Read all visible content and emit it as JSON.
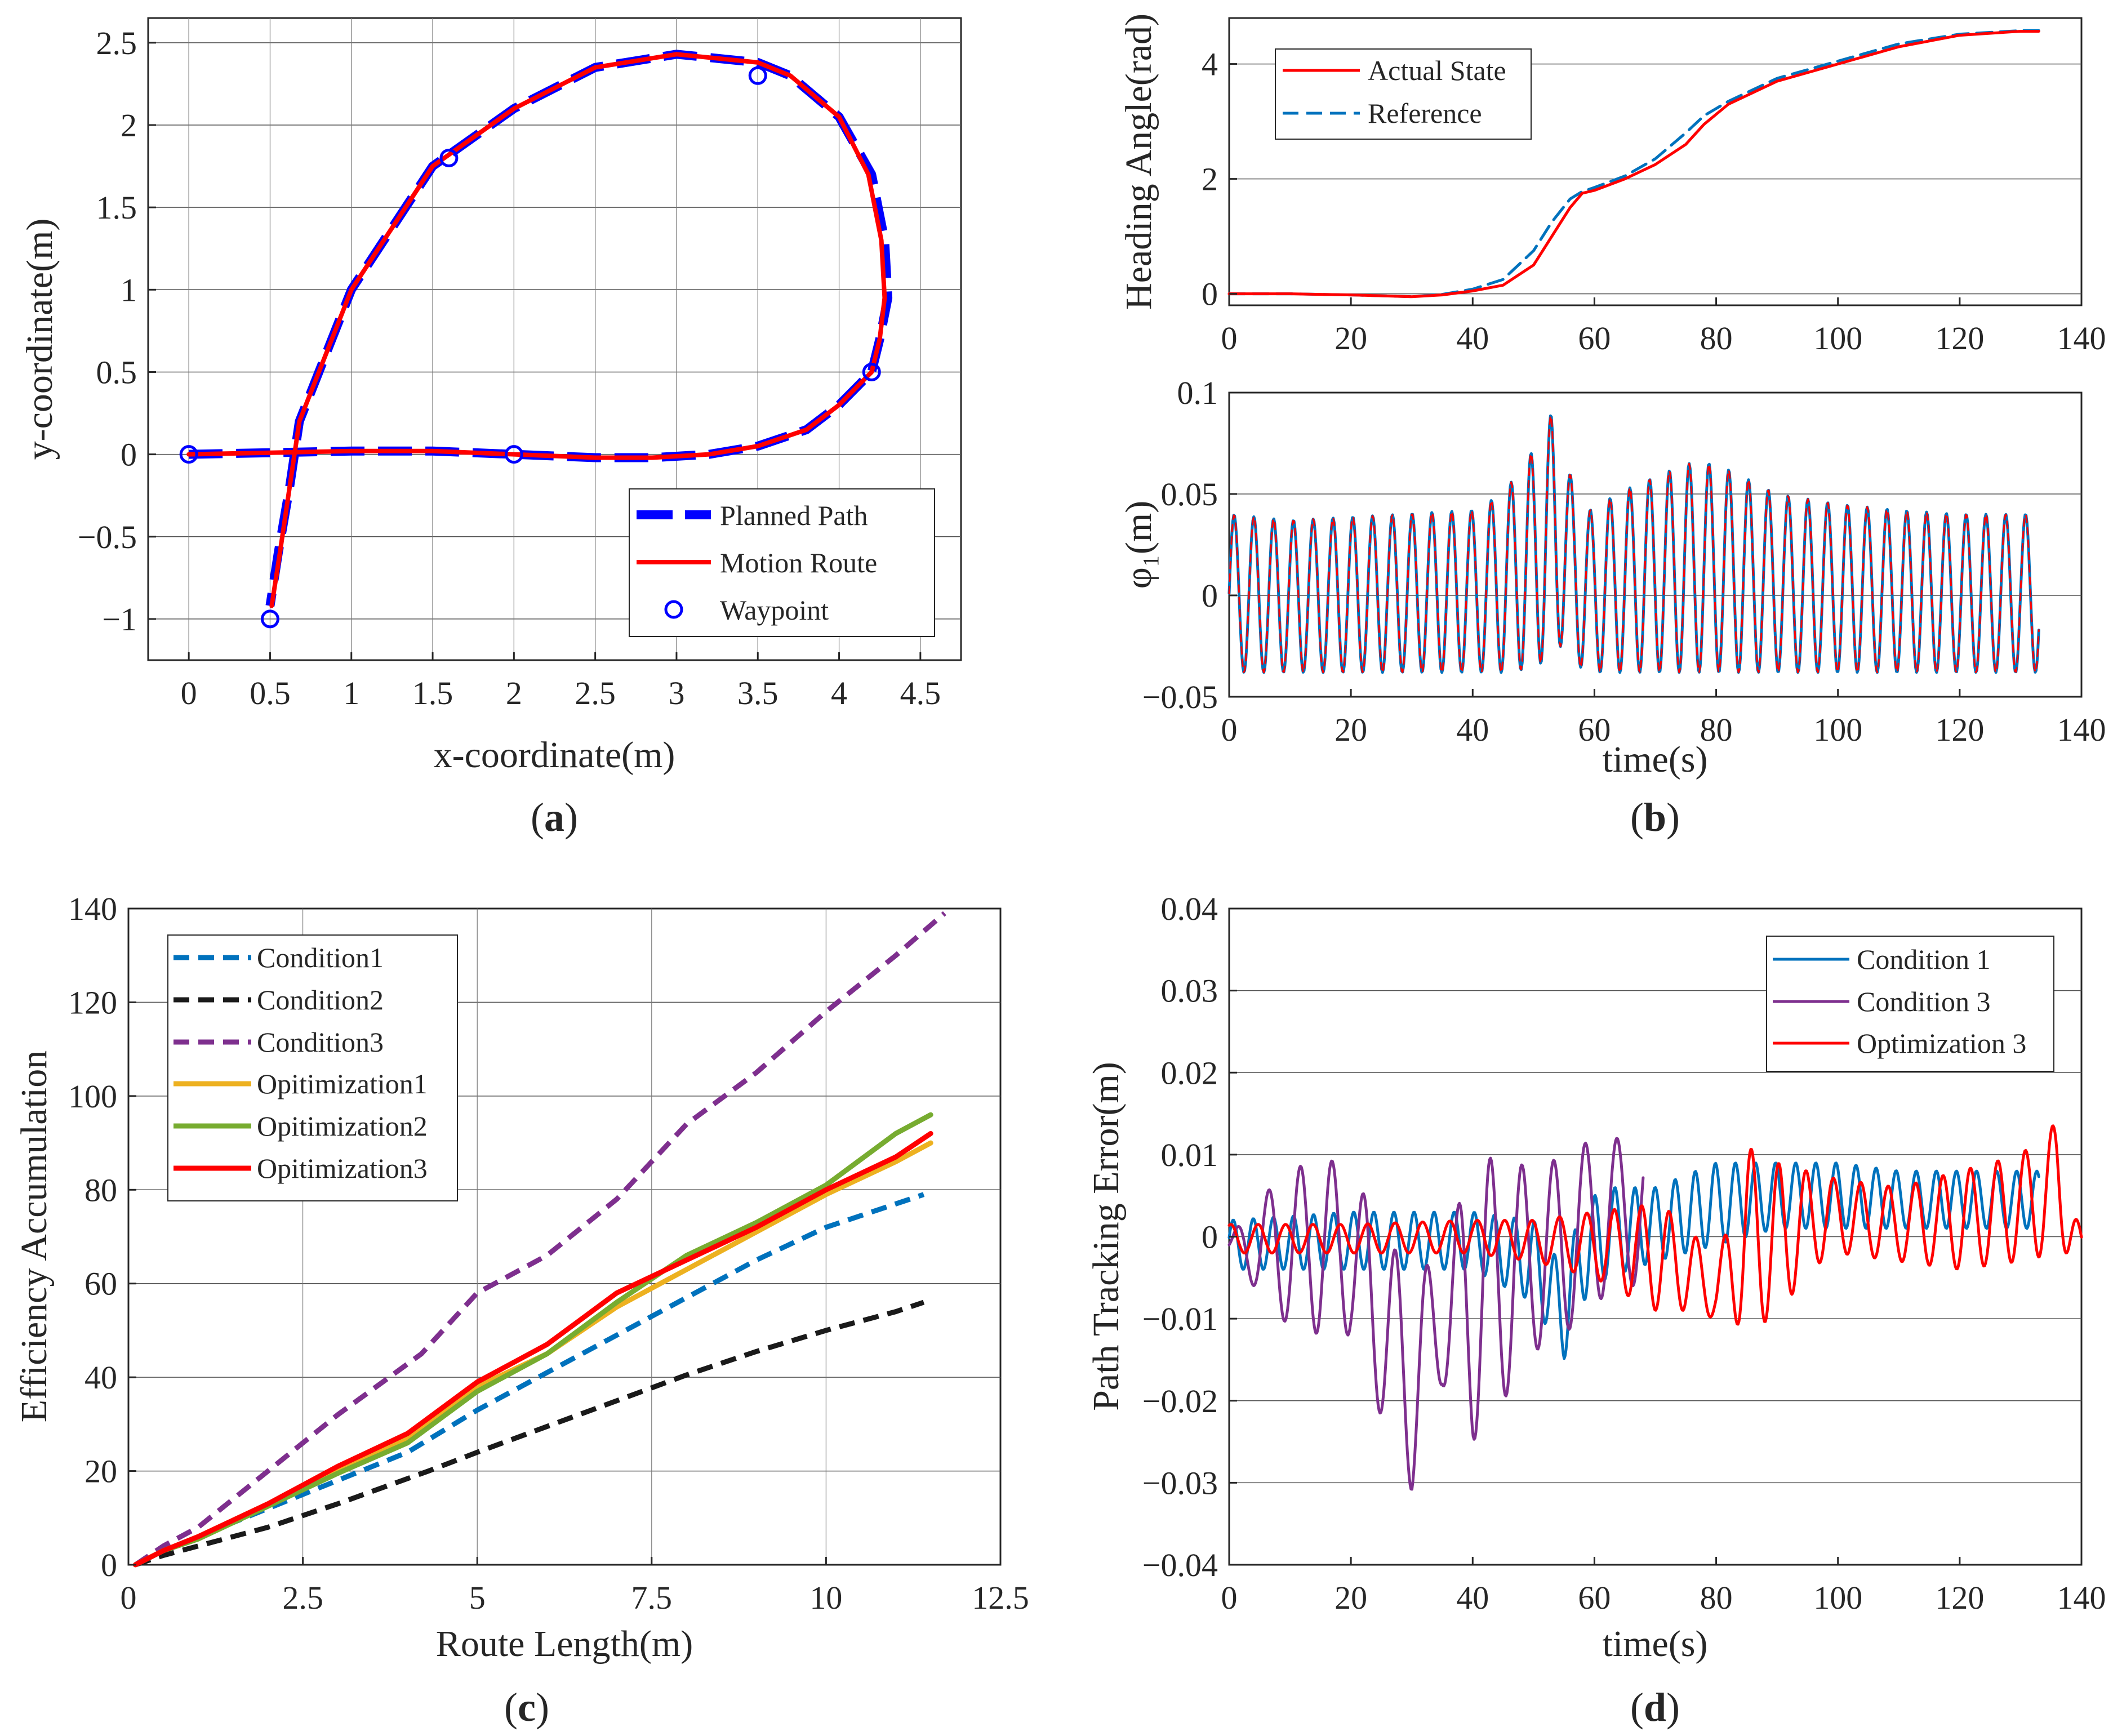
{
  "panels": [
    {
      "id": "a",
      "label": "a",
      "chart_data": {
        "type": "line",
        "xlabel": "x-coordinate(m)",
        "ylabel": "y-coordinate(m)",
        "xlim": [
          -0.25,
          4.75
        ],
        "ylim": [
          -1.25,
          2.65
        ],
        "xticks": [
          0,
          0.5,
          1,
          1.5,
          2,
          2.5,
          3,
          3.5,
          4,
          4.5
        ],
        "xtick_labels": [
          "0",
          "0.5",
          "1",
          "1.5",
          "2",
          "2.5",
          "3",
          "3.5",
          "4",
          "4.5"
        ],
        "yticks": [
          -1,
          -0.5,
          0,
          0.5,
          1,
          1.5,
          2,
          2.5
        ],
        "ytick_labels": [
          "−1",
          "−0.5",
          "0",
          "0.5",
          "1",
          "1.5",
          "2",
          "2.5"
        ],
        "legend_position": "bottom-right",
        "series": [
          {
            "name": "Planned Path",
            "style": "dash",
            "color": "#0000ff",
            "x": [
              0,
              0.5,
              1,
              1.5,
              2,
              2.5,
              2.85,
              3.2,
              3.5,
              3.8,
              4.0,
              4.1,
              4.2,
              4.25,
              4.3,
              4.28,
              4.2,
              4.0,
              3.7,
              3.5,
              3.0,
              2.5,
              2.0,
              1.5,
              1.0,
              0.68,
              0.62,
              0.55,
              0.5
            ],
            "y": [
              0,
              0.01,
              0.02,
              0.02,
              0.0,
              -0.02,
              -0.02,
              0.0,
              0.05,
              0.15,
              0.3,
              0.4,
              0.5,
              0.7,
              0.95,
              1.3,
              1.7,
              2.05,
              2.3,
              2.38,
              2.43,
              2.35,
              2.1,
              1.75,
              1.0,
              0.2,
              -0.2,
              -0.6,
              -0.92
            ]
          },
          {
            "name": "Motion Route",
            "style": "solid",
            "color": "#ff0000",
            "x": [
              0,
              0.5,
              1,
              1.5,
              2,
              2.5,
              2.85,
              3.2,
              3.5,
              3.8,
              4.0,
              4.1,
              4.2,
              4.25,
              4.28,
              4.26,
              4.18,
              4.0,
              3.7,
              3.5,
              3.0,
              2.5,
              2.0,
              1.5,
              1.0,
              0.68,
              0.62,
              0.56,
              0.51
            ],
            "y": [
              0,
              0.01,
              0.02,
              0.02,
              0.0,
              -0.02,
              -0.02,
              0.0,
              0.05,
              0.15,
              0.3,
              0.4,
              0.5,
              0.7,
              0.95,
              1.3,
              1.7,
              2.05,
              2.3,
              2.38,
              2.43,
              2.35,
              2.1,
              1.75,
              1.0,
              0.2,
              -0.2,
              -0.6,
              -0.92
            ]
          },
          {
            "name": "Waypoint",
            "style": "marker",
            "color": "#0000ff",
            "x": [
              0,
              2,
              4.2,
              3.5,
              1.6,
              0.5
            ],
            "y": [
              0,
              0,
              0.5,
              2.3,
              1.8,
              -1
            ]
          }
        ]
      }
    },
    {
      "id": "b",
      "label": "b",
      "chart_data": [
        {
          "type": "line",
          "xlabel": "",
          "ylabel": "Heading Angle(rad)",
          "xlim": [
            0,
            140
          ],
          "ylim": [
            -0.2,
            4.8
          ],
          "xticks": [
            0,
            20,
            40,
            60,
            80,
            100,
            120,
            140
          ],
          "xtick_labels": [
            "0",
            "20",
            "40",
            "60",
            "80",
            "100",
            "120",
            "140"
          ],
          "yticks": [
            0,
            2,
            4
          ],
          "ytick_labels": [
            "0",
            "2",
            "4"
          ],
          "legend_position": "top-left",
          "series": [
            {
              "name": "Actual State",
              "style": "solid",
              "color": "#ff0000",
              "x": [
                0,
                10,
                20,
                30,
                35,
                40,
                45,
                50,
                53,
                56,
                58,
                60,
                65,
                70,
                75,
                78,
                82,
                90,
                100,
                110,
                120,
                130,
                133
              ],
              "y": [
                0,
                0.0,
                -0.02,
                -0.05,
                -0.02,
                0.05,
                0.15,
                0.5,
                1.0,
                1.5,
                1.75,
                1.8,
                2.0,
                2.25,
                2.6,
                2.95,
                3.3,
                3.7,
                4.0,
                4.3,
                4.5,
                4.57,
                4.57
              ]
            },
            {
              "name": "Reference",
              "style": "dash",
              "color": "#0072bd",
              "x": [
                0,
                10,
                20,
                30,
                35,
                40,
                45,
                50,
                53,
                56,
                58,
                60,
                65,
                70,
                75,
                78,
                82,
                90,
                100,
                110,
                120,
                130,
                133
              ],
              "y": [
                0,
                0.0,
                -0.02,
                -0.05,
                -0.01,
                0.08,
                0.25,
                0.75,
                1.25,
                1.65,
                1.78,
                1.85,
                2.05,
                2.35,
                2.8,
                3.1,
                3.35,
                3.75,
                4.05,
                4.35,
                4.52,
                4.58,
                4.58
              ]
            }
          ]
        },
        {
          "type": "line",
          "xlabel": "time(s)",
          "ylabel": "φ₁(m)",
          "xlim": [
            0,
            140
          ],
          "ylim": [
            -0.05,
            0.1
          ],
          "xticks": [
            0,
            20,
            40,
            60,
            80,
            100,
            120,
            140
          ],
          "xtick_labels": [
            "0",
            "20",
            "40",
            "60",
            "80",
            "100",
            "120",
            "140"
          ],
          "yticks": [
            -0.05,
            0,
            0.05,
            0.1
          ],
          "ytick_labels": [
            "−0.05",
            "0",
            "0.05",
            "0.1"
          ],
          "series": [
            {
              "name": "phi1 actual",
              "style": "solid",
              "color": "#0072bd",
              "period": 3.25,
              "t_end": 133,
              "envelope_t": [
                0,
                10,
                40,
                45,
                50,
                53,
                56,
                58,
                65,
                75,
                80,
                90,
                100,
                110,
                120,
                133
              ],
              "upper": [
                0.04,
                0.037,
                0.042,
                0.05,
                0.072,
                0.09,
                0.06,
                0.04,
                0.052,
                0.065,
                0.065,
                0.05,
                0.045,
                0.042,
                0.04,
                0.04
              ],
              "lower": [
                -0.038,
                -0.038,
                -0.038,
                -0.038,
                -0.036,
                -0.03,
                -0.02,
                -0.038,
                -0.038,
                -0.038,
                -0.038,
                -0.038,
                -0.038,
                -0.038,
                -0.038,
                -0.038
              ]
            },
            {
              "name": "phi1 reference",
              "style": "dash",
              "color": "#ff0000",
              "period": 3.25,
              "t_end": 133
            }
          ]
        }
      ]
    },
    {
      "id": "c",
      "label": "c",
      "chart_data": {
        "type": "line",
        "xlabel": "Route Length(m)",
        "ylabel": "Efficiency Accumulation",
        "xlim": [
          0,
          12.5
        ],
        "ylim": [
          0,
          140
        ],
        "xticks": [
          0,
          2.5,
          5,
          7.5,
          10,
          12.5
        ],
        "xtick_labels": [
          "0",
          "2.5",
          "5",
          "7.5",
          "10",
          "12.5"
        ],
        "yticks": [
          0,
          20,
          40,
          60,
          80,
          100,
          120,
          140
        ],
        "ytick_labels": [
          "0",
          "20",
          "40",
          "60",
          "80",
          "100",
          "120",
          "140"
        ],
        "legend_position": "top-left",
        "series": [
          {
            "name": "Condition1",
            "style": "dash",
            "color": "#0072bd",
            "x": [
              0.1,
              0.5,
              1,
              2,
              3,
              4,
              5,
              6,
              7,
              8,
              9,
              10,
              11,
              11.4
            ],
            "y": [
              0,
              3,
              6,
              12,
              18,
              24,
              33,
              41,
              49,
              57,
              65,
              72,
              77,
              79
            ]
          },
          {
            "name": "Condition2",
            "style": "dash",
            "color": "#1a1a1a",
            "x": [
              0.1,
              0.5,
              1,
              2,
              3,
              4.3,
              5,
              6,
              7,
              8,
              9,
              10,
              11,
              11.4
            ],
            "y": [
              0,
              2,
              4,
              8,
              13,
              20,
              24,
              29.5,
              35,
              40.5,
              45.5,
              50,
              54,
              56
            ]
          },
          {
            "name": "Condition3",
            "style": "dash",
            "color": "#7e2f8e",
            "x": [
              0.1,
              0.5,
              1,
              2,
              3,
              4.2,
              5,
              6,
              7,
              8,
              9,
              10,
              11,
              11.7
            ],
            "y": [
              0,
              4,
              8,
              20,
              32,
              45,
              58,
              66,
              78,
              94,
              105,
              118,
              130,
              139
            ]
          },
          {
            "name": "Opitimization1",
            "style": "solid",
            "color": "#edb120",
            "x": [
              0.1,
              0.5,
              1,
              2,
              3,
              4,
              5,
              6,
              7,
              8,
              9,
              10,
              11,
              11.5
            ],
            "y": [
              0,
              3,
              6,
              13,
              20,
              27,
              38,
              45,
              55,
              63,
              71,
              79,
              86,
              90
            ]
          },
          {
            "name": "Opitimization2",
            "style": "solid",
            "color": "#77ac30",
            "x": [
              0.1,
              0.5,
              1,
              2,
              3,
              4,
              5,
              6,
              7,
              8,
              9,
              10,
              11,
              11.5
            ],
            "y": [
              0,
              3,
              5.5,
              12.5,
              19.5,
              26,
              37,
              45,
              56,
              66,
              73,
              81,
              92,
              96
            ]
          },
          {
            "name": "Opitimization3",
            "style": "solid",
            "color": "#ff0000",
            "x": [
              0.1,
              0.5,
              1,
              2,
              3,
              4,
              5,
              6,
              7,
              8,
              9,
              10,
              11,
              11.5
            ],
            "y": [
              0,
              3,
              6,
              13,
              21,
              28,
              39,
              47,
              58,
              65,
              72,
              80,
              87,
              92
            ]
          }
        ]
      }
    },
    {
      "id": "d",
      "label": "d",
      "chart_data": {
        "type": "line",
        "xlabel": "time(s)",
        "ylabel": "Path Tracking Error(m)",
        "xlim": [
          0,
          140
        ],
        "ylim": [
          -0.04,
          0.04
        ],
        "xticks": [
          0,
          20,
          40,
          60,
          80,
          100,
          120,
          140
        ],
        "xtick_labels": [
          "0",
          "20",
          "40",
          "60",
          "80",
          "100",
          "120",
          "140"
        ],
        "yticks": [
          -0.04,
          -0.03,
          -0.02,
          -0.01,
          0,
          0.01,
          0.02,
          0.03,
          0.04
        ],
        "ytick_labels": [
          "−0.04",
          "−0.03",
          "−0.02",
          "−0.01",
          "0",
          "0.01",
          "0.02",
          "0.03",
          "0.04"
        ],
        "legend_position": "top-right",
        "series": [
          {
            "name": "Condition 1",
            "style": "solid",
            "color": "#0072bd",
            "period": 3.3,
            "t_end": 133,
            "envelope_t": [
              0,
              20,
              40,
              50,
              55,
              58,
              62,
              70,
              80,
              90,
              100,
              110,
              120,
              133
            ],
            "upper": [
              0.002,
              0.003,
              0.003,
              0.002,
              -0.004,
              0.004,
              0.006,
              0.006,
              0.009,
              0.009,
              0.009,
              0.008,
              0.008,
              0.008
            ],
            "lower": [
              -0.004,
              -0.004,
              -0.004,
              -0.008,
              -0.015,
              -0.008,
              -0.005,
              -0.003,
              -0.001,
              0.001,
              0.001,
              0.001,
              0.001,
              0.001
            ]
          },
          {
            "name": "Condition 3",
            "style": "solid",
            "color": "#7e2f8e",
            "period": 5.2,
            "t_end": 68,
            "envelope_t": [
              0,
              8,
              15,
              20,
              26,
              30,
              35,
              40,
              45,
              50,
              55,
              60,
              65,
              68
            ],
            "upper": [
              0.0,
              0.007,
              0.01,
              0.008,
              0.0,
              -0.005,
              -0.002,
              0.009,
              0.01,
              0.008,
              0.01,
              0.012,
              0.012,
              0.012
            ],
            "lower": [
              -0.002,
              -0.01,
              -0.012,
              -0.012,
              -0.024,
              -0.031,
              -0.018,
              -0.025,
              -0.02,
              -0.014,
              -0.012,
              -0.008,
              -0.006,
              -0.006
            ]
          },
          {
            "name": "Optimization 3",
            "style": "solid",
            "color": "#ff0000",
            "period": 4.5,
            "t_end": 140,
            "envelope_t": [
              0,
              20,
              40,
              50,
              60,
              70,
              75,
              80,
              85,
              90,
              95,
              100,
              110,
              120,
              130,
              136,
              140
            ],
            "upper": [
              0.0015,
              0.0015,
              0.002,
              0.002,
              0.003,
              0.004,
              0.002,
              -0.004,
              0.011,
              0.009,
              0.008,
              0.007,
              0.006,
              0.008,
              0.01,
              0.014,
              0.0
            ],
            "lower": [
              -0.002,
              -0.002,
              -0.002,
              -0.003,
              -0.005,
              -0.009,
              -0.009,
              -0.01,
              -0.011,
              -0.01,
              -0.004,
              -0.002,
              -0.003,
              -0.004,
              -0.003,
              -0.002,
              -0.002
            ]
          }
        ]
      }
    }
  ],
  "legends": {
    "a": [
      "Planned Path",
      "Motion Route",
      "Waypoint"
    ],
    "b": [
      "Actual State",
      "Reference"
    ],
    "c": [
      "Condition1",
      "Condition2",
      "Condition3",
      "Opitimization1",
      "Opitimization2",
      "Opitimization3"
    ],
    "d": [
      "Condition 1",
      "Condition 3",
      "Optimization 3"
    ]
  }
}
